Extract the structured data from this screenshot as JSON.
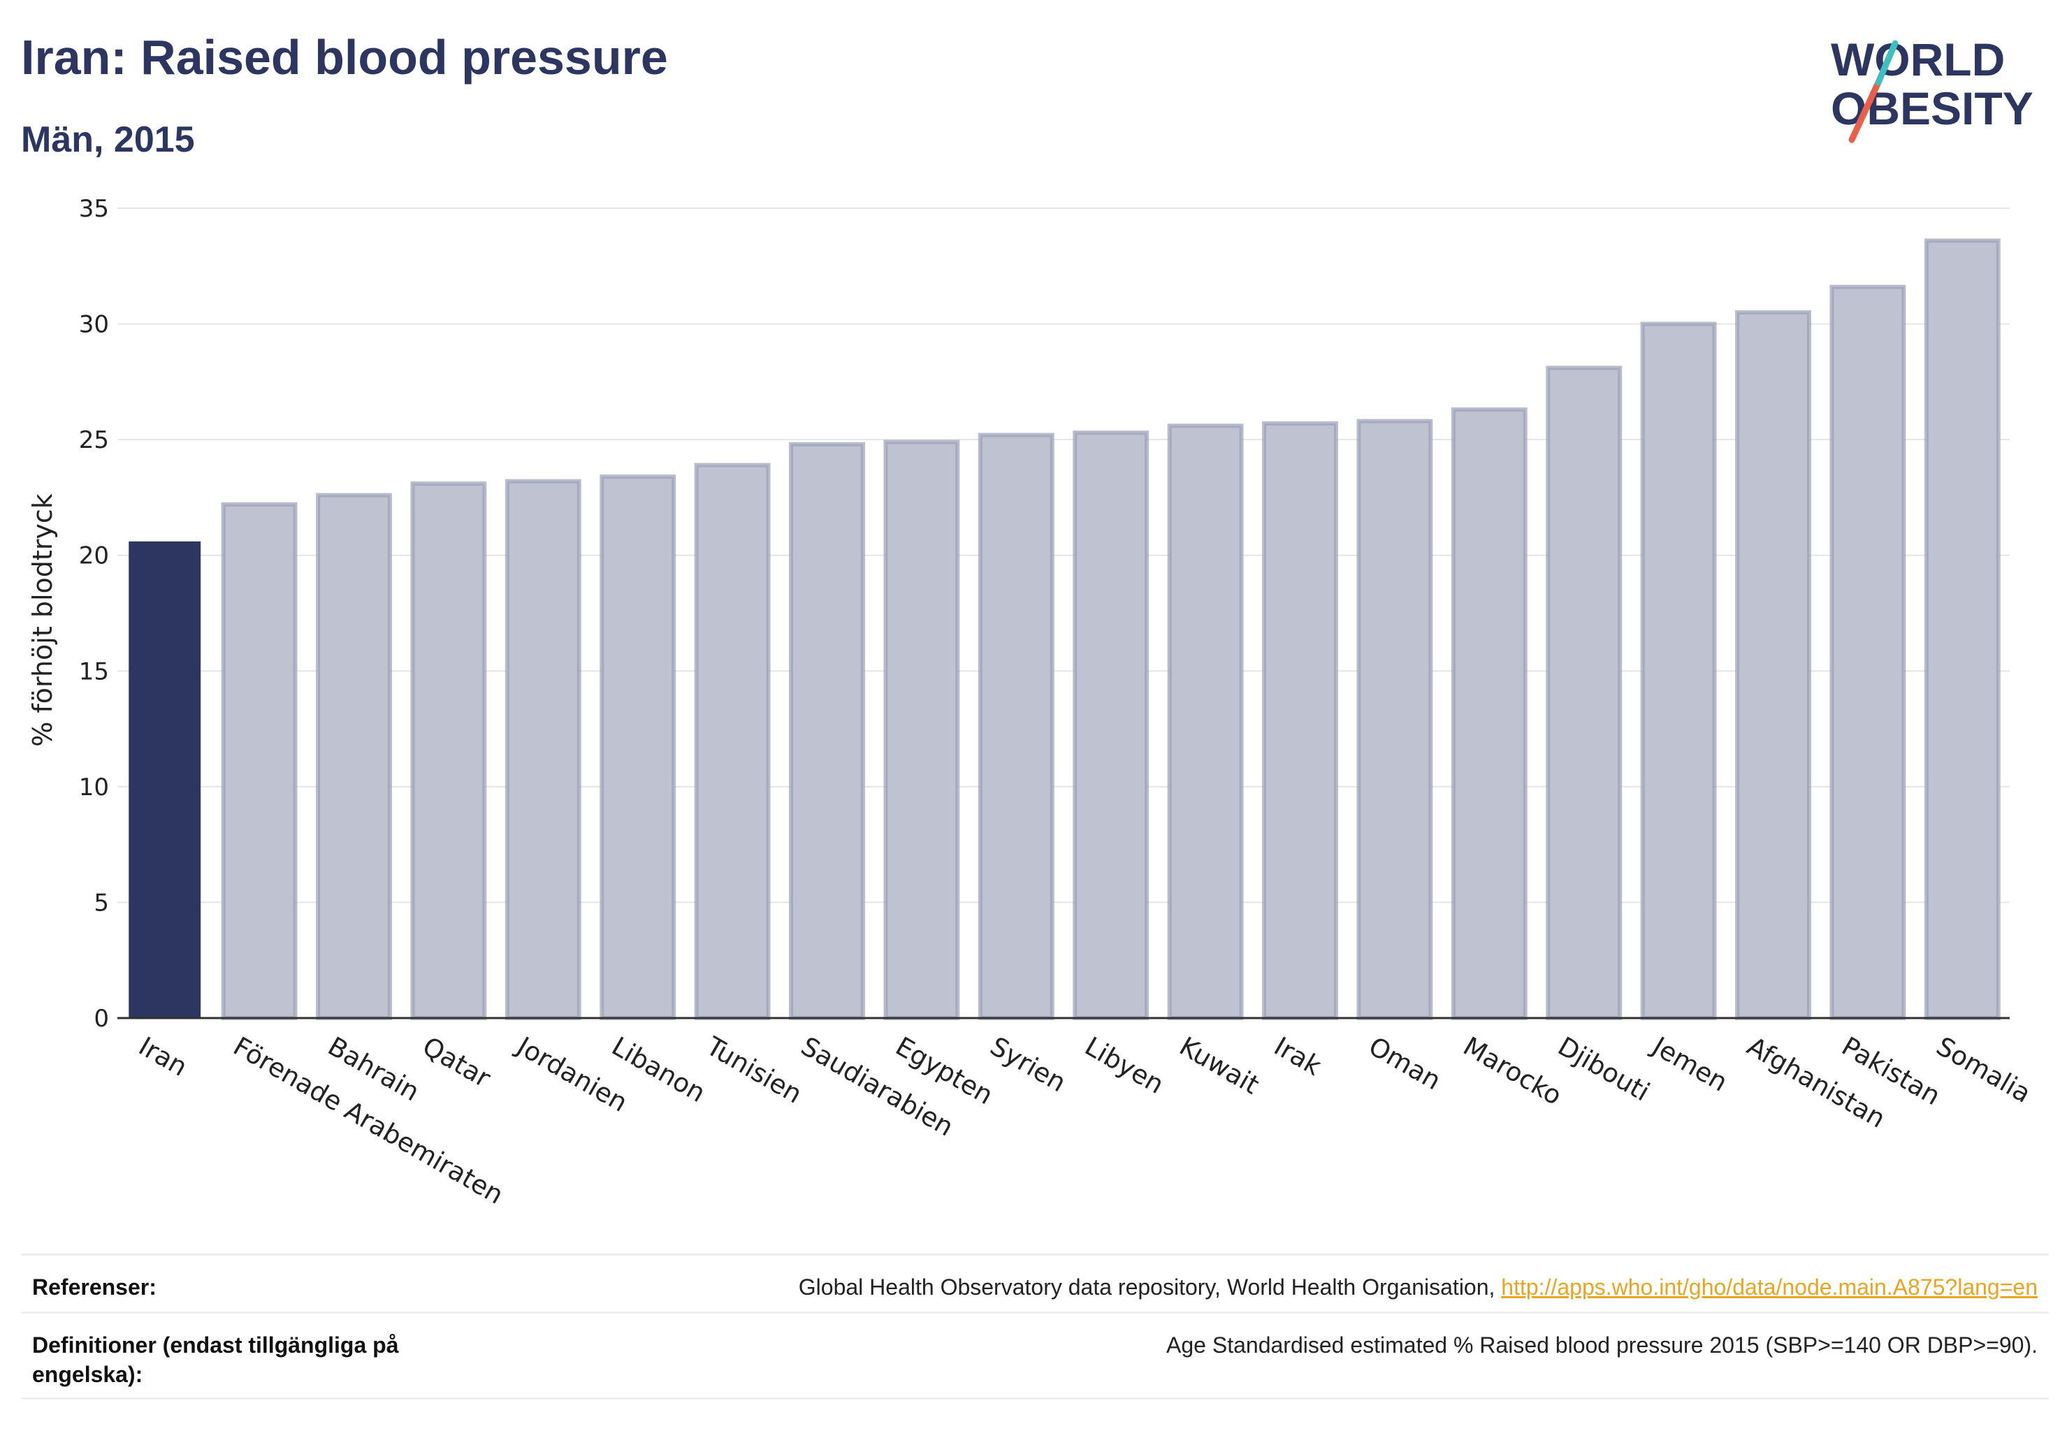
{
  "header": {
    "title": "Iran: Raised blood pressure",
    "subtitle": "Män, 2015"
  },
  "logo": {
    "line1": "WORLD",
    "line2": "OBESITY",
    "accent_colors": [
      "#e8604c",
      "#3fbfbf"
    ]
  },
  "colors": {
    "highlight": "#2d3561",
    "bar_fill": "#bfc2d0",
    "bar_stroke": "#9aa0b8",
    "grid": "#e6e6e6",
    "link": "#e8a521"
  },
  "chart_data": {
    "type": "bar",
    "ylabel": "% förhöjt blodtryck",
    "xlabel": "",
    "ylim": [
      0,
      35
    ],
    "yticks": [
      0,
      5,
      10,
      15,
      20,
      25,
      30,
      35
    ],
    "grid": true,
    "highlight_category": "Iran",
    "categories": [
      "Iran",
      "Förenade Arabemiraten",
      "Bahrain",
      "Qatar",
      "Jordanien",
      "Libanon",
      "Tunisien",
      "Saudiarabien",
      "Egypten",
      "Syrien",
      "Libyen",
      "Kuwait",
      "Irak",
      "Oman",
      "Marocko",
      "Djibouti",
      "Jemen",
      "Afghanistan",
      "Pakistan",
      "Somalia"
    ],
    "values": [
      20.6,
      22.2,
      22.6,
      23.1,
      23.2,
      23.4,
      23.9,
      24.8,
      24.9,
      25.2,
      25.3,
      25.6,
      25.7,
      25.8,
      26.3,
      28.1,
      30.0,
      30.5,
      31.6,
      33.6
    ]
  },
  "footer": {
    "references_label": "Referenser:",
    "references_text": "Global Health Observatory data repository, World Health Organisation, ",
    "references_link": "http://apps.who.int/gho/data/node.main.A875?lang=en",
    "definitions_label": "Definitioner (endast tillgängliga på engelska):",
    "definitions_text": "Age Standardised estimated % Raised blood pressure 2015 (SBP>=140 OR DBP>=90)."
  }
}
